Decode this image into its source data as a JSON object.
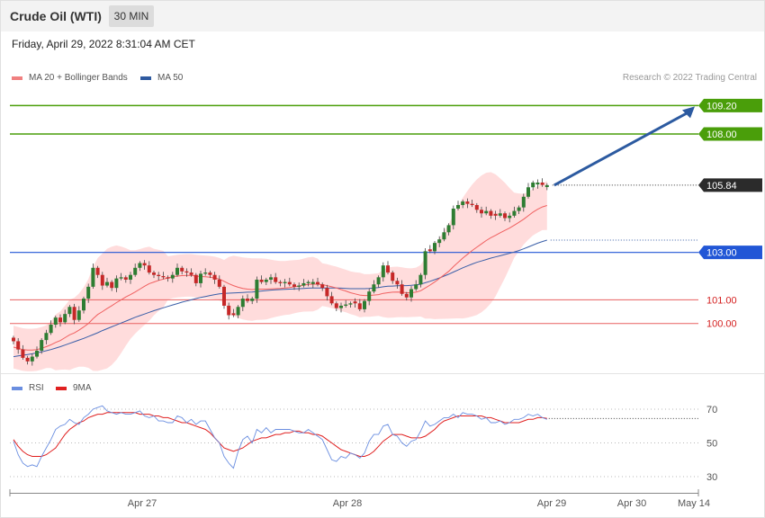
{
  "header": {
    "title": "Crude Oil (WTI)",
    "timeframe": "30 MIN",
    "date": "Friday, April 29, 2022 8:31:04 AM CET",
    "credit": "Research © 2022 Trading Central"
  },
  "legend": {
    "ma20": "MA 20 + Bollinger Bands",
    "ma50": "MA 50",
    "rsi": "RSI",
    "ma9": "9MA"
  },
  "colors": {
    "up": "#2e7d32",
    "down": "#c62828",
    "ma20": "#f06060",
    "ma50": "#3a5fa8",
    "band": "#ffd6d6",
    "resistance": "#4a9e0a",
    "support_blue": "#2156d6",
    "support_red": "#e86060",
    "arrow": "#2c5aa0",
    "rsi": "#6a8ee0",
    "rsi_ma": "#e02020"
  },
  "chart_data": [
    {
      "type": "candlestick",
      "x_ticks": [
        "Apr 27",
        "Apr 28",
        "Apr 29",
        "Apr 30",
        "May 14"
      ],
      "ylim": [
        97.9,
        110.05
      ],
      "levels": [
        {
          "value": 109.2,
          "label": "109.20",
          "kind": "resistance"
        },
        {
          "value": 108.0,
          "label": "108.00",
          "kind": "resistance"
        },
        {
          "value": 105.84,
          "label": "105.84",
          "kind": "last"
        },
        {
          "value": 103.0,
          "label": "103.00",
          "kind": "pivot"
        },
        {
          "value": 101.0,
          "label": "101.00",
          "kind": "support"
        },
        {
          "value": 100.0,
          "label": "100.00",
          "kind": "support"
        }
      ],
      "projection": {
        "from": 105.84,
        "to": 109.2
      },
      "close": [
        99.25,
        98.9,
        98.55,
        98.4,
        98.6,
        98.85,
        99.3,
        99.6,
        99.95,
        100.25,
        100.05,
        100.4,
        100.7,
        100.15,
        100.55,
        101.05,
        101.55,
        102.35,
        102.05,
        101.6,
        101.75,
        101.5,
        101.9,
        101.95,
        101.85,
        102.05,
        102.35,
        102.55,
        102.45,
        102.15,
        102.05,
        102.0,
        101.95,
        101.9,
        102.05,
        102.35,
        102.2,
        102.15,
        102.05,
        101.7,
        102.1,
        102.15,
        102.05,
        101.85,
        101.55,
        100.75,
        100.35,
        100.35,
        100.7,
        101.05,
        100.95,
        101.05,
        101.85,
        101.75,
        101.85,
        101.95,
        101.75,
        101.7,
        101.75,
        101.65,
        101.55,
        101.6,
        101.7,
        101.75,
        101.75,
        101.65,
        101.5,
        101.15,
        100.85,
        100.65,
        100.75,
        100.8,
        100.85,
        100.85,
        100.6,
        100.95,
        101.35,
        101.65,
        101.95,
        102.45,
        102.15,
        101.8,
        101.65,
        101.25,
        101.1,
        101.45,
        101.65,
        102.05,
        103.05,
        103.05,
        103.4,
        103.55,
        103.85,
        104.15,
        104.85,
        105.0,
        105.15,
        105.05,
        105.0,
        104.8,
        104.65,
        104.75,
        104.55,
        104.55,
        104.65,
        104.45,
        104.55,
        104.75,
        104.9,
        105.35,
        105.75,
        105.95,
        105.95,
        105.85,
        105.84
      ],
      "ma20": [
        99.0,
        98.95,
        98.9,
        98.88,
        98.88,
        98.9,
        98.95,
        99.02,
        99.1,
        99.2,
        99.28,
        99.4,
        99.52,
        99.6,
        99.72,
        99.85,
        100.0,
        100.2,
        100.38,
        100.5,
        100.63,
        100.75,
        100.88,
        101.0,
        101.12,
        101.22,
        101.33,
        101.45,
        101.57,
        101.68,
        101.75,
        101.82,
        101.87,
        101.92,
        101.97,
        102.0,
        102.02,
        102.03,
        102.03,
        102.0,
        101.98,
        101.97,
        101.95,
        101.92,
        101.87,
        101.78,
        101.68,
        101.6,
        101.53,
        101.48,
        101.45,
        101.43,
        101.45,
        101.45,
        101.45,
        101.46,
        101.47,
        101.48,
        101.5,
        101.52,
        101.55,
        101.58,
        101.62,
        101.65,
        101.66,
        101.66,
        101.64,
        101.6,
        101.55,
        101.5,
        101.43,
        101.37,
        101.3,
        101.25,
        101.2,
        101.18,
        101.18,
        101.2,
        101.22,
        101.27,
        101.3,
        101.32,
        101.33,
        101.32,
        101.3,
        101.3,
        101.32,
        101.38,
        101.5,
        101.62,
        101.75,
        101.9,
        102.05,
        102.2,
        102.4,
        102.58,
        102.76,
        102.92,
        103.08,
        103.22,
        103.36,
        103.5,
        103.62,
        103.72,
        103.83,
        103.93,
        104.03,
        104.15,
        104.27,
        104.4,
        104.55,
        104.7,
        104.82,
        104.92,
        104.98
      ],
      "ma50": [
        98.6,
        98.63,
        98.66,
        98.69,
        98.72,
        98.76,
        98.8,
        98.85,
        98.9,
        98.96,
        99.02,
        99.09,
        99.16,
        99.23,
        99.3,
        99.37,
        99.45,
        99.53,
        99.61,
        99.7,
        99.78,
        99.86,
        99.94,
        100.02,
        100.1,
        100.18,
        100.26,
        100.33,
        100.4,
        100.47,
        100.54,
        100.6,
        100.66,
        100.72,
        100.78,
        100.84,
        100.9,
        100.95,
        101.0,
        101.05,
        101.1,
        101.14,
        101.18,
        101.22,
        101.25,
        101.27,
        101.28,
        101.29,
        101.3,
        101.31,
        101.32,
        101.33,
        101.35,
        101.37,
        101.39,
        101.41,
        101.42,
        101.43,
        101.44,
        101.45,
        101.46,
        101.47,
        101.48,
        101.49,
        101.5,
        101.5,
        101.5,
        101.5,
        101.5,
        101.5,
        101.49,
        101.48,
        101.47,
        101.47,
        101.47,
        101.47,
        101.48,
        101.5,
        101.52,
        101.55,
        101.57,
        101.58,
        101.59,
        101.6,
        101.6,
        101.61,
        101.63,
        101.66,
        101.72,
        101.78,
        101.85,
        101.92,
        102.0,
        102.08,
        102.17,
        102.26,
        102.35,
        102.43,
        102.51,
        102.58,
        102.64,
        102.7,
        102.76,
        102.81,
        102.86,
        102.91,
        102.96,
        103.02,
        103.08,
        103.15,
        103.23,
        103.31,
        103.39,
        103.46,
        103.52
      ]
    },
    {
      "type": "line",
      "ylim": [
        22,
        78
      ],
      "y_ticks": [
        30,
        50,
        70
      ],
      "series": [
        {
          "name": "RSI",
          "values": [
            51,
            43,
            38,
            36,
            37,
            36,
            42,
            47,
            52,
            58,
            60,
            61,
            64,
            62,
            61,
            65,
            67,
            70,
            71,
            72,
            69,
            68,
            67,
            68,
            67,
            67,
            68,
            69,
            66,
            65,
            66,
            63,
            63,
            62,
            62,
            66,
            65,
            62,
            64,
            61,
            63,
            63,
            58,
            53,
            50,
            42,
            38,
            35,
            45,
            52,
            54,
            50,
            58,
            56,
            59,
            56,
            58,
            58,
            58,
            58,
            57,
            56,
            56,
            58,
            56,
            54,
            52,
            46,
            40,
            39,
            42,
            41,
            44,
            43,
            41,
            44,
            51,
            55,
            55,
            60,
            61,
            55,
            54,
            50,
            48,
            51,
            52,
            57,
            63,
            60,
            61,
            63,
            65,
            65,
            67,
            65,
            68,
            67,
            67,
            66,
            64,
            65,
            62,
            62,
            63,
            61,
            62,
            64,
            64,
            65,
            67,
            66,
            67,
            65,
            64
          ]
        },
        {
          "name": "9MA",
          "values": [
            52,
            48,
            45,
            43,
            42,
            42,
            42,
            43,
            45,
            47,
            51,
            55,
            58,
            60,
            62,
            63,
            65,
            66,
            67,
            67,
            68,
            68,
            68,
            68,
            68,
            68,
            68,
            67,
            67,
            67,
            66,
            66,
            65,
            65,
            64,
            63,
            62,
            62,
            61,
            60,
            59,
            58,
            56,
            53,
            50,
            47,
            46,
            45,
            46,
            47,
            49,
            51,
            52,
            53,
            53,
            54,
            55,
            55,
            56,
            56,
            57,
            57,
            56,
            56,
            55,
            55,
            54,
            52,
            50,
            48,
            46,
            45,
            44,
            43,
            42,
            42,
            43,
            45,
            48,
            51,
            53,
            55,
            55,
            55,
            54,
            53,
            53,
            53,
            54,
            56,
            58,
            61,
            63,
            64,
            65,
            66,
            66,
            66,
            66,
            66,
            66,
            65,
            65,
            64,
            63,
            62,
            62,
            62,
            62,
            63,
            64,
            64,
            65,
            65,
            64.5
          ]
        }
      ],
      "last_value": 64.5
    }
  ]
}
